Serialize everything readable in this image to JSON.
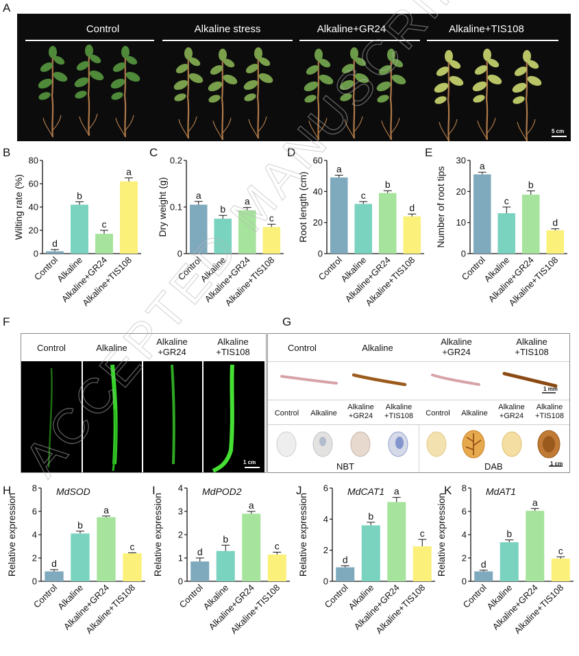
{
  "panel_letters": {
    "A": "A",
    "B": "B",
    "C": "C",
    "D": "D",
    "E": "E",
    "F": "F",
    "G": "G",
    "H": "H",
    "I": "I",
    "J": "J",
    "K": "K"
  },
  "panel_a": {
    "groups": [
      "Control",
      "Alkaline stress",
      "Alkaline+GR24",
      "Alkaline+TIS108"
    ],
    "scale": "5 cm"
  },
  "panel_f": {
    "headers": [
      "Control",
      "Alkaline",
      "Alkaline\n+GR24",
      "Alkaline\n+TIS108"
    ],
    "scale": "1 cm"
  },
  "panel_g": {
    "headers": [
      "Control",
      "Alkaline",
      "Alkaline\n+GR24",
      "Alkaline\n+TIS108"
    ],
    "root_scale": "1 mm",
    "leaf_headers_left": [
      "Control",
      "Alkaline",
      "Alkaline\n+GR24",
      "Alkaline\n+TIS108"
    ],
    "leaf_headers_right": [
      "Control",
      "Alkaline",
      "Alkaline\n+GR24",
      "Alkaline\n+TIS108"
    ],
    "nbt_label": "NBT",
    "dab_label": "DAB",
    "leaf_scale": "1 cm"
  },
  "watermark": "ACCEPTED MANUSCRIPT",
  "colors": {
    "control": "#7fa9bc",
    "alkaline": "#79d3be",
    "gr24": "#a6e39c",
    "tis108": "#fbf07a"
  },
  "chart_data": [
    {
      "id": "B",
      "type": "bar",
      "categories": [
        "Control",
        "Alkaline",
        "Alkaline+GR24",
        "Alkaline+TIS108"
      ],
      "values": [
        2,
        42,
        17,
        62
      ],
      "errors": [
        1.5,
        2.5,
        3,
        3
      ],
      "letters": [
        "d",
        "b",
        "c",
        "a"
      ],
      "ylabel": "Wilting rate (%)",
      "ylim": [
        0,
        80
      ],
      "yticks": [
        0,
        20,
        40,
        60,
        80
      ]
    },
    {
      "id": "C",
      "type": "bar",
      "categories": [
        "Control",
        "Alkaline",
        "Alkaline+GR24",
        "Alkaline+TIS108"
      ],
      "values": [
        0.105,
        0.075,
        0.093,
        0.057
      ],
      "errors": [
        0.007,
        0.007,
        0.006,
        0.006
      ],
      "letters": [
        "a",
        "b",
        "a",
        "c"
      ],
      "ylabel": "Dry weight (g)",
      "ylim": [
        0,
        0.2
      ],
      "yticks": [
        0,
        0.1,
        0.2
      ]
    },
    {
      "id": "D",
      "type": "bar",
      "categories": [
        "Control",
        "Alkaline",
        "Alkaline+GR24",
        "Alkaline+TIS108"
      ],
      "values": [
        49,
        32,
        39,
        24
      ],
      "errors": [
        1.5,
        1.5,
        1.5,
        1.5
      ],
      "letters": [
        "a",
        "c",
        "b",
        "d"
      ],
      "ylabel": "Root length (cm)",
      "ylim": [
        0,
        60
      ],
      "yticks": [
        0,
        20,
        40,
        60
      ]
    },
    {
      "id": "E",
      "type": "bar",
      "categories": [
        "Control",
        "Alkaline",
        "Alkaline+GR24",
        "Alkaline+TIS108"
      ],
      "values": [
        25.5,
        13,
        19,
        7.5
      ],
      "errors": [
        0.7,
        2,
        1.2,
        0.5
      ],
      "letters": [
        "a",
        "c",
        "b",
        "d"
      ],
      "ylabel": "Number of root tips",
      "ylim": [
        0,
        30
      ],
      "yticks": [
        0,
        10,
        20,
        30
      ]
    },
    {
      "id": "H",
      "type": "bar",
      "title": "MdSOD",
      "categories": [
        "Control",
        "Alkaline",
        "Alkaline+GR24",
        "Alkaline+TIS108"
      ],
      "values": [
        0.85,
        4.1,
        5.5,
        2.4
      ],
      "errors": [
        0.15,
        0.2,
        0.1,
        0.05
      ],
      "letters": [
        "d",
        "b",
        "a",
        "c"
      ],
      "ylabel": "Relative expression",
      "ylim": [
        0,
        8
      ],
      "yticks": [
        0,
        2,
        4,
        6,
        8
      ]
    },
    {
      "id": "I",
      "type": "bar",
      "title": "MdPOD2",
      "categories": [
        "Control",
        "Alkaline",
        "Alkaline+GR24",
        "Alkaline+TIS108"
      ],
      "values": [
        0.85,
        1.3,
        2.9,
        1.15
      ],
      "errors": [
        0.15,
        0.25,
        0.1,
        0.1
      ],
      "letters": [
        "d",
        "b",
        "a",
        "c"
      ],
      "ylabel": "Relative expression",
      "ylim": [
        0,
        4
      ],
      "yticks": [
        0,
        1,
        2,
        3,
        4
      ]
    },
    {
      "id": "J",
      "type": "bar",
      "title": "MdCAT1",
      "categories": [
        "Control",
        "Alkaline",
        "Alkaline+GR24",
        "Alkaline+TIS108"
      ],
      "values": [
        0.9,
        3.6,
        5.1,
        2.25
      ],
      "errors": [
        0.1,
        0.2,
        0.3,
        0.45
      ],
      "letters": [
        "d",
        "b",
        "a",
        "c"
      ],
      "ylabel": "Relative expression",
      "ylim": [
        0,
        6
      ],
      "yticks": [
        0,
        2,
        4,
        6
      ]
    },
    {
      "id": "K",
      "type": "bar",
      "title": "MdAT1",
      "categories": [
        "Control",
        "Alkaline",
        "Alkaline+GR24",
        "Alkaline+TIS108"
      ],
      "values": [
        0.85,
        3.35,
        6.05,
        1.95
      ],
      "errors": [
        0.1,
        0.2,
        0.2,
        0.15
      ],
      "letters": [
        "d",
        "b",
        "a",
        "c"
      ],
      "ylabel": "Relative expression",
      "ylim": [
        0,
        8
      ],
      "yticks": [
        0,
        2,
        4,
        6,
        8
      ]
    }
  ]
}
